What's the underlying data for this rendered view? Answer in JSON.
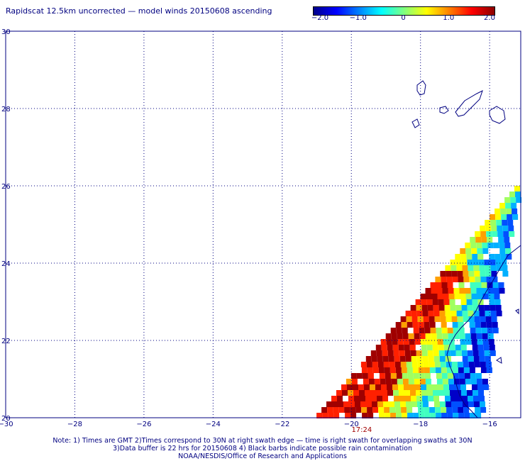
{
  "title": "Rapidscat 12.5km uncorrected — model winds 20150608 ascending",
  "colorbar": {
    "min": -2.0,
    "max": 2.0,
    "ticks": [
      "−2.0",
      "−1.0",
      "0",
      "1.0",
      "2.0"
    ],
    "tick_values": [
      -2.0,
      -1.0,
      0,
      1.0,
      2.0
    ],
    "colors": [
      "#00008c",
      "#0000ff",
      "#0080ff",
      "#00ffff",
      "#80ff80",
      "#ffff00",
      "#ff8000",
      "#ff0000",
      "#8c0000"
    ]
  },
  "map": {
    "lon_ticks": [
      "−30",
      "−28",
      "−26",
      "−24",
      "−22",
      "−20",
      "−18",
      "−16"
    ],
    "lon_values": [
      -30,
      -28,
      -26,
      -24,
      -22,
      -20,
      -18,
      -16
    ],
    "lat_ticks": [
      "30",
      "28",
      "26",
      "24",
      "22",
      "20"
    ],
    "lat_values": [
      30,
      28,
      26,
      24,
      22,
      20
    ],
    "lon_range": [
      -30,
      -15.1
    ],
    "lat_range": [
      20,
      30
    ],
    "time_label": "17:24",
    "time_label_lon": -19.7,
    "coastline_color": "#000080",
    "data_description": "swath of wind speed differences over the eastern Atlantic off West Africa"
  },
  "notes": {
    "line1": "Note: 1) Times are GMT 2)Times correspond to 30N at right swath edge — time is right swath for overlapping swaths at 30N",
    "line2": "3)Data buffer is 22 hrs for 20150608 4) Black barbs indicate possible rain contamination",
    "line3": "NOAA/NESDIS/Office of Research and Applications"
  }
}
